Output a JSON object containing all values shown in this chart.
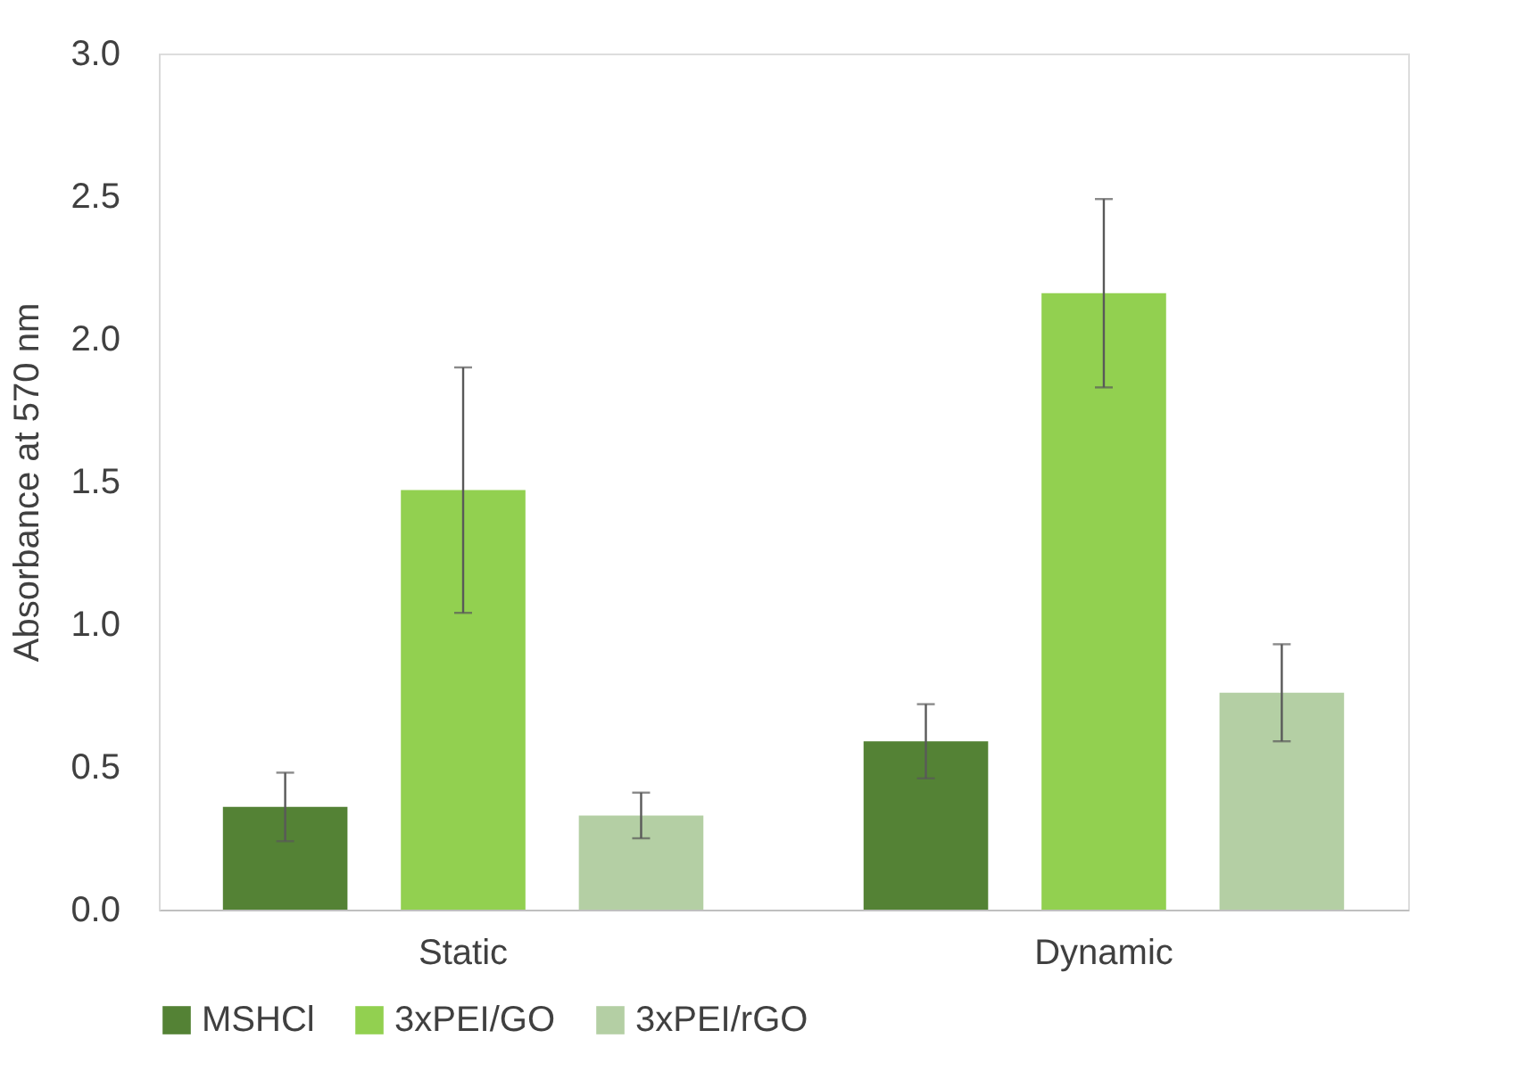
{
  "chart_data": {
    "type": "bar",
    "ylabel": "Absorbance at 570 nm",
    "categories": [
      "Static",
      "Dynamic"
    ],
    "series": [
      {
        "name": "MSHCl",
        "color": "#548235",
        "values": [
          0.36,
          0.59
        ],
        "errors": [
          0.12,
          0.13
        ]
      },
      {
        "name": "3xPEI/GO",
        "color": "#92d050",
        "values": [
          1.47,
          2.16
        ],
        "errors": [
          0.43,
          0.33
        ]
      },
      {
        "name": "3xPEI/rGO",
        "color": "#b4cfa4",
        "values": [
          0.33,
          0.76
        ],
        "errors": [
          0.08,
          0.17
        ]
      }
    ],
    "ylim": [
      0,
      3
    ],
    "yticks": [
      {
        "value": 0,
        "label": "0.0"
      },
      {
        "value": 0.5,
        "label": "0.5"
      },
      {
        "value": 1,
        "label": "1.0"
      },
      {
        "value": 1.5,
        "label": "1.5"
      },
      {
        "value": 2,
        "label": "2.0"
      },
      {
        "value": 2.5,
        "label": "2.5"
      },
      {
        "value": 3,
        "label": "3.0"
      }
    ],
    "grid": false,
    "legend": "bottom"
  }
}
